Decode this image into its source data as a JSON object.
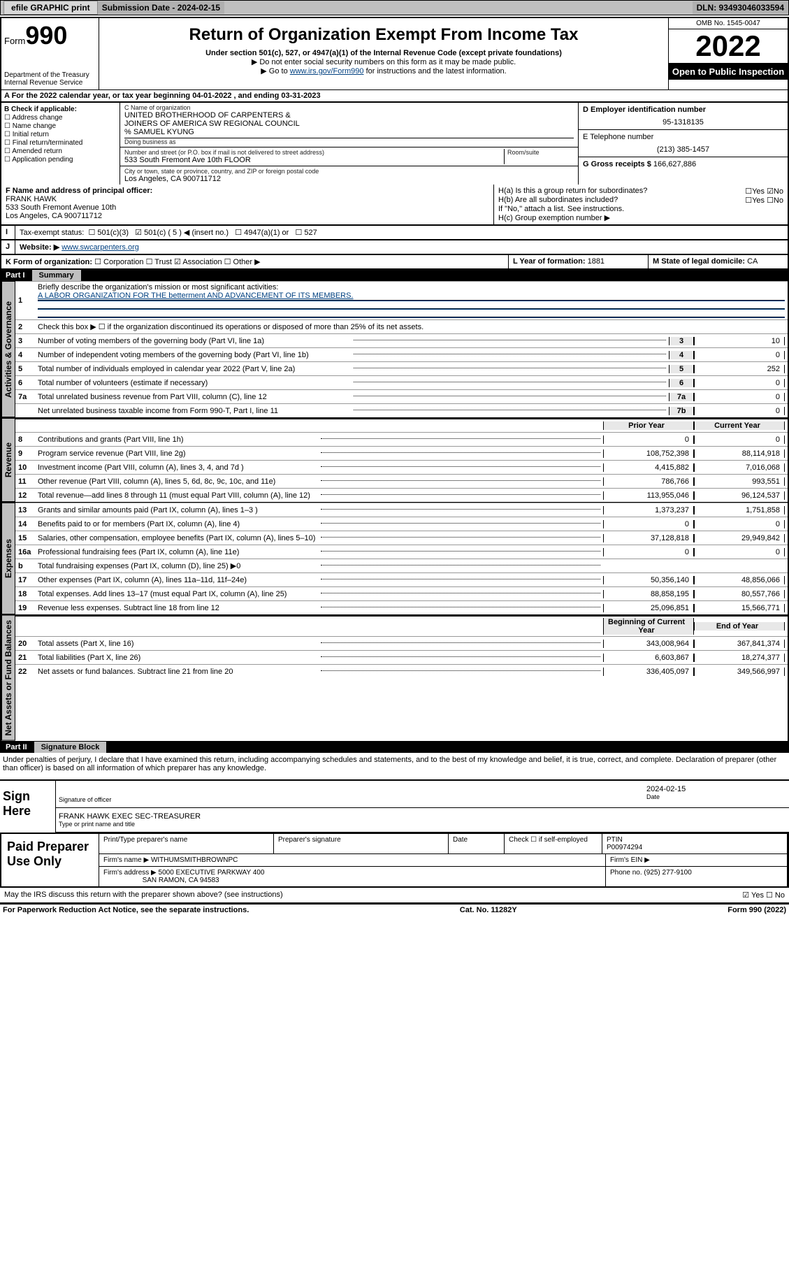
{
  "header": {
    "efile": "efile GRAPHIC print",
    "sub_label": "Submission Date - 2024-02-15",
    "dln_label": "DLN: 93493046033594"
  },
  "formhead": {
    "form_word": "Form",
    "form_no": "990",
    "dept": "Department of the Treasury",
    "irs": "Internal Revenue Service",
    "title": "Return of Organization Exempt From Income Tax",
    "sub": "Under section 501(c), 527, or 4947(a)(1) of the Internal Revenue Code (except private foundations)",
    "note1": "▶ Do not enter social security numbers on this form as it may be made public.",
    "note2_pre": "▶ Go to ",
    "note2_link": "www.irs.gov/Form990",
    "note2_post": " for instructions and the latest information.",
    "omb": "OMB No. 1545-0047",
    "year": "2022",
    "open": "Open to Public Inspection"
  },
  "rowA": "A For the 2022 calendar year, or tax year beginning 04-01-2022   , and ending 03-31-2023",
  "colB": {
    "label": "B Check if applicable:",
    "opts": [
      "Address change",
      "Name change",
      "Initial return",
      "Final return/terminated",
      "Amended return",
      "Application pending"
    ]
  },
  "colC": {
    "name_lbl": "C Name of organization",
    "name1": "UNITED BROTHERHOOD OF CARPENTERS &",
    "name2": "JOINERS OF AMERICA SW REGIONAL COUNCIL",
    "careof": "% SAMUEL KYUNG",
    "dba_lbl": "Doing business as",
    "addr_lbl": "Number and street (or P.O. box if mail is not delivered to street address)",
    "room_lbl": "Room/suite",
    "addr": "533 South Fremont Ave 10th FLOOR",
    "city_lbl": "City or town, state or province, country, and ZIP or foreign postal code",
    "city": "Los Angeles, CA  900711712"
  },
  "colR": {
    "d_lbl": "D Employer identification number",
    "d_val": "95-1318135",
    "e_lbl": "E Telephone number",
    "e_val": "(213) 385-1457",
    "g_lbl": "G Gross receipts $",
    "g_val": "166,627,886"
  },
  "rowF": {
    "f_lbl": "F Name and address of principal officer:",
    "name": "FRANK HAWK",
    "addr1": "533 South Fremont Avenue 10th",
    "addr2": "Los Angeles, CA  900711712"
  },
  "rowH": {
    "ha": "H(a)  Is this a group return for subordinates?",
    "ha_ans": "☐Yes ☑No",
    "hb": "H(b)  Are all subordinates included?",
    "hb_ans": "☐Yes ☐No",
    "hif": "If \"No,\" attach a list. See instructions.",
    "hc": "H(c)  Group exemption number ▶"
  },
  "rowI": {
    "lbl": "Tax-exempt status:",
    "o1": "☐ 501(c)(3)",
    "o2": "☑ 501(c) ( 5 ) ◀ (insert no.)",
    "o3": "☐ 4947(a)(1) or",
    "o4": "☐ 527"
  },
  "rowJ": {
    "lbl": "Website: ▶",
    "val": "www.swcarpenters.org"
  },
  "rowK": {
    "lbl": "K Form of organization:",
    "o1": "☐ Corporation",
    "o2": "☐ Trust",
    "o3": "☑ Association",
    "o4": "☐ Other ▶"
  },
  "rowL": {
    "lbl": "L Year of formation:",
    "val": "1881"
  },
  "rowM": {
    "lbl": "M State of legal domicile:",
    "val": "CA"
  },
  "part1": {
    "label": "Part I",
    "title": "Summary"
  },
  "summary": {
    "l1": "Briefly describe the organization's mission or most significant activities:",
    "l1v": "A LABOR ORGANIZATION FOR THE betterment AND ADVANCEMENT OF ITS MEMBERS.",
    "l2": "Check this box ▶ ☐ if the organization discontinued its operations or disposed of more than 25% of its net assets.",
    "lines_gov": [
      {
        "n": "3",
        "d": "Number of voting members of the governing body (Part VI, line 1a)",
        "k": "3",
        "v": "10"
      },
      {
        "n": "4",
        "d": "Number of independent voting members of the governing body (Part VI, line 1b)",
        "k": "4",
        "v": "0"
      },
      {
        "n": "5",
        "d": "Total number of individuals employed in calendar year 2022 (Part V, line 2a)",
        "k": "5",
        "v": "252"
      },
      {
        "n": "6",
        "d": "Total number of volunteers (estimate if necessary)",
        "k": "6",
        "v": "0"
      },
      {
        "n": "7a",
        "d": "Total unrelated business revenue from Part VIII, column (C), line 12",
        "k": "7a",
        "v": "0"
      },
      {
        "n": "",
        "d": "Net unrelated business taxable income from Form 990-T, Part I, line 11",
        "k": "7b",
        "v": "0"
      }
    ],
    "col_prior": "Prior Year",
    "col_curr": "Current Year",
    "rev": [
      {
        "n": "8",
        "d": "Contributions and grants (Part VIII, line 1h)",
        "p": "0",
        "c": "0"
      },
      {
        "n": "9",
        "d": "Program service revenue (Part VIII, line 2g)",
        "p": "108,752,398",
        "c": "88,114,918"
      },
      {
        "n": "10",
        "d": "Investment income (Part VIII, column (A), lines 3, 4, and 7d )",
        "p": "4,415,882",
        "c": "7,016,068"
      },
      {
        "n": "11",
        "d": "Other revenue (Part VIII, column (A), lines 5, 6d, 8c, 9c, 10c, and 11e)",
        "p": "786,766",
        "c": "993,551"
      },
      {
        "n": "12",
        "d": "Total revenue—add lines 8 through 11 (must equal Part VIII, column (A), line 12)",
        "p": "113,955,046",
        "c": "96,124,537"
      }
    ],
    "exp": [
      {
        "n": "13",
        "d": "Grants and similar amounts paid (Part IX, column (A), lines 1–3 )",
        "p": "1,373,237",
        "c": "1,751,858"
      },
      {
        "n": "14",
        "d": "Benefits paid to or for members (Part IX, column (A), line 4)",
        "p": "0",
        "c": "0"
      },
      {
        "n": "15",
        "d": "Salaries, other compensation, employee benefits (Part IX, column (A), lines 5–10)",
        "p": "37,128,818",
        "c": "29,949,842"
      },
      {
        "n": "16a",
        "d": "Professional fundraising fees (Part IX, column (A), line 11e)",
        "p": "0",
        "c": "0"
      },
      {
        "n": "b",
        "d": "Total fundraising expenses (Part IX, column (D), line 25) ▶0",
        "p": "",
        "c": "",
        "shade": true
      },
      {
        "n": "17",
        "d": "Other expenses (Part IX, column (A), lines 11a–11d, 11f–24e)",
        "p": "50,356,140",
        "c": "48,856,066"
      },
      {
        "n": "18",
        "d": "Total expenses. Add lines 13–17 (must equal Part IX, column (A), line 25)",
        "p": "88,858,195",
        "c": "80,557,766"
      },
      {
        "n": "19",
        "d": "Revenue less expenses. Subtract line 18 from line 12",
        "p": "25,096,851",
        "c": "15,566,771"
      }
    ],
    "col_beg": "Beginning of Current Year",
    "col_end": "End of Year",
    "net": [
      {
        "n": "20",
        "d": "Total assets (Part X, line 16)",
        "p": "343,008,964",
        "c": "367,841,374"
      },
      {
        "n": "21",
        "d": "Total liabilities (Part X, line 26)",
        "p": "6,603,867",
        "c": "18,274,377"
      },
      {
        "n": "22",
        "d": "Net assets or fund balances. Subtract line 21 from line 20",
        "p": "336,405,097",
        "c": "349,566,997"
      }
    ]
  },
  "tabs": {
    "gov": "Activities & Governance",
    "rev": "Revenue",
    "exp": "Expenses",
    "net": "Net Assets or Fund Balances"
  },
  "part2": {
    "label": "Part II",
    "title": "Signature Block"
  },
  "sig": {
    "decl": "Under penalties of perjury, I declare that I have examined this return, including accompanying schedules and statements, and to the best of my knowledge and belief, it is true, correct, and complete. Declaration of preparer (other than officer) is based on all information of which preparer has any knowledge.",
    "sign_here": "Sign Here",
    "sig_officer": "Signature of officer",
    "date": "2024-02-15",
    "typed": "FRANK HAWK  EXEC SEC-TREASURER",
    "typed_lbl": "Type or print name and title"
  },
  "prep": {
    "title": "Paid Preparer Use Only",
    "h1": "Print/Type preparer's name",
    "h2": "Preparer's signature",
    "h3": "Date",
    "h4_pre": "Check ☐ if self-employed",
    "h5": "PTIN",
    "ptin": "P00974294",
    "firm_lbl": "Firm's name   ▶",
    "firm": "WITHUMSMITHBROWNPC",
    "ein_lbl": "Firm's EIN ▶",
    "addr_lbl": "Firm's address ▶",
    "addr1": "5000 EXECUTIVE PARKWAY 400",
    "addr2": "SAN RAMON, CA  94583",
    "phone_lbl": "Phone no.",
    "phone": "(925) 277-9100"
  },
  "footer": {
    "may": "May the IRS discuss this return with the preparer shown above? (see instructions)",
    "may_ans": "☑ Yes  ☐ No",
    "pra": "For Paperwork Reduction Act Notice, see the separate instructions.",
    "cat": "Cat. No. 11282Y",
    "form": "Form 990 (2022)"
  },
  "style": {
    "accent": "#004080",
    "bg": "#ffffff",
    "shade": "#c8c8c8",
    "header_bg": "#c0c0c0",
    "fontsize_base": 11,
    "fontsize_title": 24,
    "fontsize_year": 42
  }
}
